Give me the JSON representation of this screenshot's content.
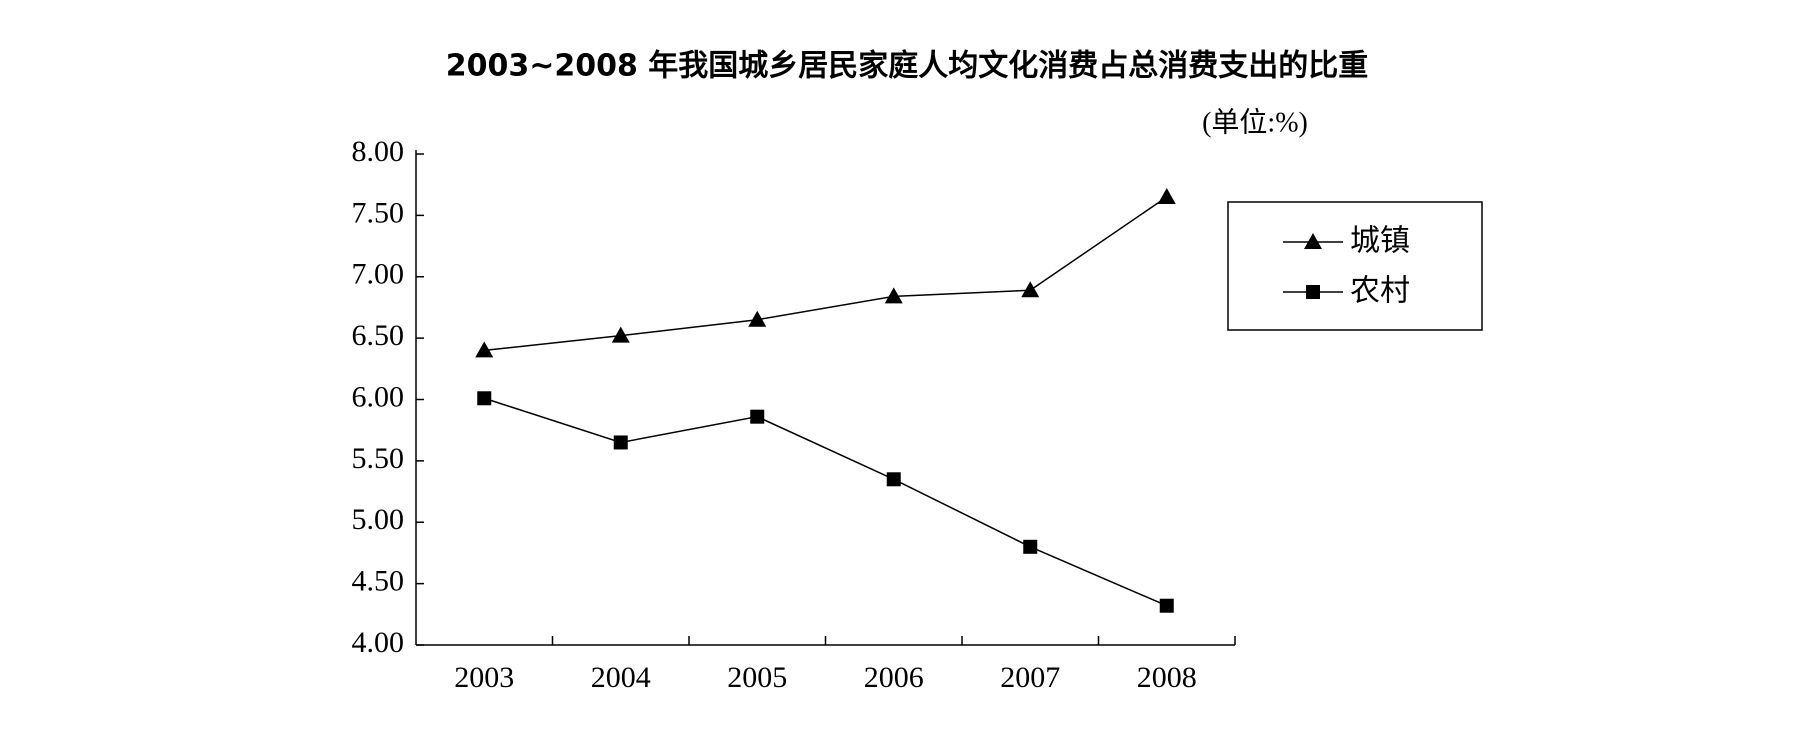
{
  "chart_data": {
    "type": "line",
    "title": "2003~2008 年我国城乡居民家庭人均文化消费占总消费支出的比重",
    "subtitle": "(单位:%)",
    "categories": [
      "2003",
      "2004",
      "2005",
      "2006",
      "2007",
      "2008"
    ],
    "series": [
      {
        "name": "城镇",
        "color": "#000000",
        "marker": "triangle",
        "values": [
          6.4,
          6.52,
          6.65,
          6.84,
          6.89,
          7.65
        ]
      },
      {
        "name": "农村",
        "color": "#000000",
        "marker": "square",
        "values": [
          6.01,
          5.65,
          5.86,
          5.35,
          4.8,
          4.32
        ]
      }
    ],
    "ylim": [
      4,
      8
    ],
    "yticks": [
      {
        "value": 4,
        "label": "4.00"
      },
      {
        "value": 4.5,
        "label": "4.50"
      },
      {
        "value": 5,
        "label": "5.00"
      },
      {
        "value": 5.5,
        "label": "5.50"
      },
      {
        "value": 6,
        "label": "6.00"
      },
      {
        "value": 6.5,
        "label": "6.50"
      },
      {
        "value": 7,
        "label": "7.00"
      },
      {
        "value": 7.5,
        "label": "7.50"
      },
      {
        "value": 8,
        "label": "8.00"
      }
    ],
    "grid": false,
    "legend": "upper right"
  }
}
